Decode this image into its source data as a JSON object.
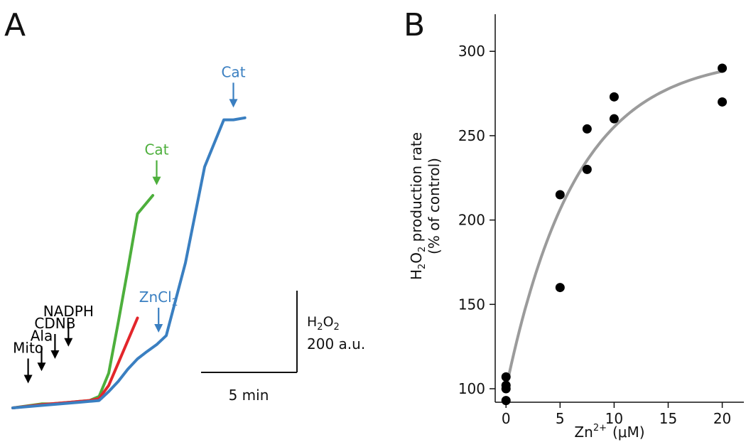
{
  "panel_a_label": "A",
  "panel_b_label": "B",
  "chart_data": [
    {
      "type": "line",
      "title": "",
      "xlabel": "",
      "ylabel": "",
      "x_unit": "min",
      "y_unit": "H2O2 a.u.",
      "series": [
        {
          "name": "green",
          "color": "#4daf3c",
          "x": [
            0,
            1.5,
            2.0,
            2.5,
            3.0,
            3.5,
            4.0,
            4.5,
            5.0,
            5.5,
            6.0,
            6.5,
            7.3
          ],
          "y": [
            0,
            10,
            10,
            12,
            14,
            16,
            18,
            28,
            85,
            210,
            340,
            475,
            520
          ]
        },
        {
          "name": "red",
          "color": "#e3262b",
          "x": [
            0,
            1.5,
            2.0,
            2.5,
            3.0,
            3.5,
            4.0,
            4.5,
            5.0,
            5.5,
            6.0,
            6.5
          ],
          "y": [
            0,
            8,
            10,
            12,
            14,
            16,
            18,
            23,
            55,
            110,
            165,
            220
          ]
        },
        {
          "name": "blue",
          "color": "#3a7fc1",
          "x": [
            0,
            1.5,
            2.0,
            2.5,
            3.0,
            3.5,
            4.0,
            4.5,
            5.0,
            5.5,
            6.0,
            6.5,
            7.0,
            7.5,
            8.0,
            9.0,
            10.0,
            11.0,
            11.5,
            12.1
          ],
          "y": [
            0,
            6,
            8,
            10,
            12,
            14,
            16,
            18,
            40,
            65,
            95,
            120,
            138,
            155,
            177,
            355,
            590,
            705,
            705,
            710
          ]
        }
      ],
      "annotations": [
        {
          "label": "Mito",
          "color": "#000000",
          "x": 0.8
        },
        {
          "label": "Ala",
          "color": "#000000",
          "x": 1.5
        },
        {
          "label": "CDNB",
          "color": "#000000",
          "x": 2.2
        },
        {
          "label": "NADPH",
          "color": "#000000",
          "x": 2.9
        },
        {
          "label": "Cat",
          "color": "#4daf3c",
          "x": 7.5
        },
        {
          "label": "Cat",
          "color": "#3a7fc1",
          "x": 11.5
        },
        {
          "label": "ZnCl",
          "label_sub": "2",
          "color": "#3a7fc1",
          "x": 7.6
        }
      ],
      "scale_bar": {
        "x_text": "5 min",
        "y_text": "200 a.u.",
        "y_label": "H",
        "y_label_sub1": "2",
        "y_label_mid": "O",
        "y_label_sub2": "2",
        "x_len": 5,
        "y_len": 200
      }
    },
    {
      "type": "scatter",
      "title": "",
      "xlabel_main": "Zn",
      "xlabel_sup": "2+",
      "xlabel_unit": "(μM)",
      "ylabel_main": "H",
      "ylabel_sub1": "2",
      "ylabel_mid": "O",
      "ylabel_sub2": "2",
      "ylabel_rest": " production rate",
      "ylabel_line2": "(% of control)",
      "xlim": [
        -1,
        22
      ],
      "ylim": [
        92,
        322
      ],
      "xticks": [
        0,
        5,
        10,
        15,
        20
      ],
      "yticks": [
        100,
        150,
        200,
        250,
        300
      ],
      "points": [
        {
          "x": 0,
          "y": 93
        },
        {
          "x": 0,
          "y": 100
        },
        {
          "x": 0,
          "y": 102
        },
        {
          "x": 0,
          "y": 107
        },
        {
          "x": 5,
          "y": 160
        },
        {
          "x": 5,
          "y": 215
        },
        {
          "x": 7.5,
          "y": 230
        },
        {
          "x": 7.5,
          "y": 254
        },
        {
          "x": 10,
          "y": 260
        },
        {
          "x": 10,
          "y": 273
        },
        {
          "x": 20,
          "y": 270
        },
        {
          "x": 20,
          "y": 290
        }
      ],
      "fit": {
        "type": "exponential",
        "y0": 100,
        "ymax": 297,
        "k": 0.155,
        "x_end": 20,
        "color": "#9b9b9b"
      }
    }
  ]
}
